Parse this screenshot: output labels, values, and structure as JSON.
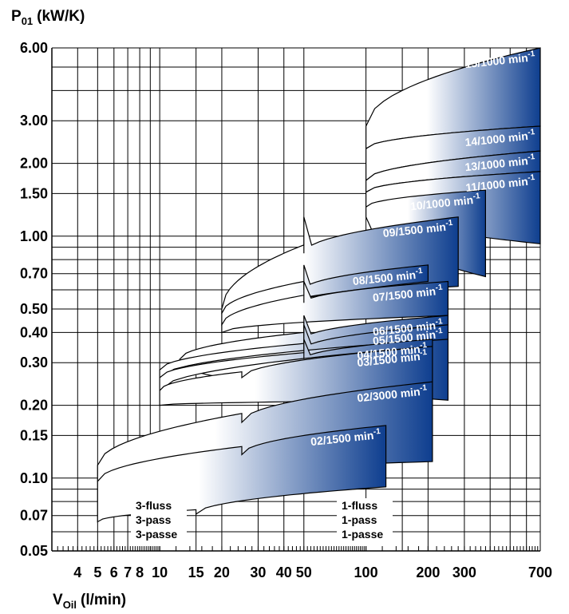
{
  "chart_data": {
    "type": "area",
    "title": "",
    "ylabel": "P01 (kW/K)",
    "ylabel_main": "P",
    "ylabel_sub": "01",
    "ylabel_unit": "(kW/K)",
    "xlabel": "VOil (l/min)",
    "xlabel_main": "V",
    "xlabel_sub": "Oil",
    "xlabel_unit": "(l/min)",
    "x_scale": "log",
    "y_scale": "log",
    "xlim": [
      3,
      700
    ],
    "ylim": [
      0.05,
      6.0
    ],
    "grid": true,
    "x_tick_labels": [
      "4",
      "5",
      "6",
      "7",
      "8",
      "10",
      "15",
      "20",
      "30",
      "40",
      "50",
      "100",
      "200",
      "300",
      "700"
    ],
    "y_tick_labels": [
      "6.00",
      "3.00",
      "2.00",
      "1.50",
      "1.00",
      "0.70",
      "0.50",
      "0.40",
      "0.30",
      "0.20",
      "0.15",
      "0.10",
      "0.07",
      "0.05"
    ],
    "pass_labels": {
      "three": [
        "3-fluss",
        "3-pass",
        "3-passe"
      ],
      "one": [
        "1-fluss",
        "1-pass",
        "1-passe"
      ]
    },
    "colors": {
      "band_start": "#ffffff",
      "band_end": "#0e3e8f",
      "outline": "#000000"
    },
    "series": [
      {
        "name": "02/1500 min-1",
        "label": "02/1500 min",
        "x_range": [
          5,
          125
        ],
        "upper": [
          [
            5,
            0.097
          ],
          [
            25,
            0.135
          ],
          [
            25,
            0.125
          ],
          [
            125,
            0.165
          ]
        ],
        "lower": [
          [
            5,
            0.066
          ],
          [
            15,
            0.074
          ],
          [
            15,
            0.071
          ],
          [
            125,
            0.092
          ]
        ]
      },
      {
        "name": "02/3000 min-1",
        "label": "02/3000 min",
        "x_range": [
          5,
          210
        ],
        "upper": [
          [
            5,
            0.113
          ],
          [
            25,
            0.185
          ],
          [
            25,
            0.17
          ],
          [
            210,
            0.25
          ]
        ],
        "lower": [
          [
            5,
            0.097
          ],
          [
            210,
            0.117
          ]
        ]
      },
      {
        "name": "03/1500 min-1",
        "label": "03/1500 min",
        "x_range": [
          10,
          210
        ],
        "upper": [
          [
            10,
            0.23
          ],
          [
            25,
            0.275
          ],
          [
            25,
            0.26
          ],
          [
            210,
            0.35
          ]
        ],
        "lower": [
          [
            10,
            0.2
          ],
          [
            210,
            0.21
          ]
        ]
      },
      {
        "name": "04/1500 min-1",
        "label": "04/1500 min",
        "x_range": [
          10,
          210
        ],
        "upper": [
          [
            10,
            0.26
          ],
          [
            50,
            0.33
          ],
          [
            50,
            0.31
          ],
          [
            210,
            0.375
          ]
        ],
        "lower": [
          [
            10,
            0.23
          ],
          [
            210,
            0.35
          ]
        ]
      },
      {
        "name": "05/1500 min-1",
        "label": "05/1500 min",
        "x_range": [
          10,
          250
        ],
        "upper": [
          [
            10,
            0.28
          ],
          [
            50,
            0.36
          ],
          [
            50,
            0.34
          ],
          [
            250,
            0.43
          ]
        ],
        "lower": [
          [
            10,
            0.26
          ],
          [
            250,
            0.375
          ]
        ]
      },
      {
        "name": "06/1500 min-1",
        "label": "06/1500 min",
        "x_range": [
          12.5,
          250
        ],
        "upper": [
          [
            12.5,
            0.31
          ],
          [
            50,
            0.4
          ],
          [
            50,
            0.375
          ],
          [
            250,
            0.47
          ]
        ],
        "lower": [
          [
            12.5,
            0.3
          ],
          [
            250,
            0.21
          ]
        ]
      },
      {
        "name": "07/1500 min-1",
        "label": "07/1500 min",
        "x_range": [
          20,
          250
        ],
        "upper": [
          [
            20,
            0.43
          ],
          [
            50,
            0.57
          ],
          [
            50,
            0.53
          ],
          [
            250,
            0.65
          ]
        ],
        "lower": [
          [
            20,
            0.4
          ],
          [
            250,
            0.47
          ]
        ]
      },
      {
        "name": "08/1500 min-1",
        "label": "08/1500 min",
        "x_range": [
          20,
          200
        ],
        "upper": [
          [
            20,
            0.48
          ],
          [
            50,
            0.65
          ],
          [
            50,
            0.6
          ],
          [
            200,
            0.76
          ]
        ],
        "lower": [
          [
            20,
            0.43
          ],
          [
            200,
            0.65
          ]
        ]
      },
      {
        "name": "09/1500 min-1",
        "label": "09/1500 min",
        "x_range": [
          20,
          280
        ],
        "upper": [
          [
            20,
            0.5
          ],
          [
            50,
            0.92
          ],
          [
            50,
            0.85
          ],
          [
            280,
            1.2
          ]
        ],
        "lower": [
          [
            20,
            0.48
          ],
          [
            280,
            0.62
          ]
        ]
      },
      {
        "name": "10/1000 min-1",
        "label": "10/1000 min",
        "x_range": [
          100,
          380
        ],
        "upper": [
          [
            100,
            1.32
          ],
          [
            380,
            1.55
          ]
        ],
        "lower": [
          [
            100,
            1.2
          ],
          [
            380,
            0.68
          ]
        ]
      },
      {
        "name": "11/1000 min-1",
        "label": "11/1000 min",
        "x_range": [
          100,
          700
        ],
        "upper": [
          [
            100,
            1.52
          ],
          [
            700,
            1.85
          ]
        ],
        "lower": [
          [
            100,
            1.32
          ],
          [
            700,
            0.93
          ]
        ]
      },
      {
        "name": "13/1000 min-1",
        "label": "13/1000 min",
        "x_range": [
          100,
          700
        ],
        "upper": [
          [
            100,
            1.7
          ],
          [
            700,
            2.25
          ]
        ],
        "lower": [
          [
            100,
            1.52
          ],
          [
            700,
            1.85
          ]
        ]
      },
      {
        "name": "14/1000 min-1",
        "label": "14/1000 min",
        "x_range": [
          100,
          700
        ],
        "upper": [
          [
            100,
            2.3
          ],
          [
            700,
            2.85
          ]
        ],
        "lower": [
          [
            100,
            1.7
          ],
          [
            700,
            2.25
          ]
        ]
      },
      {
        "name": "15/1000 min-1",
        "label": "15/1000 min",
        "x_range": [
          100,
          700
        ],
        "upper": [
          [
            100,
            2.85
          ],
          [
            700,
            6.0
          ]
        ],
        "lower": [
          [
            100,
            2.3
          ],
          [
            700,
            2.85
          ]
        ]
      }
    ]
  }
}
